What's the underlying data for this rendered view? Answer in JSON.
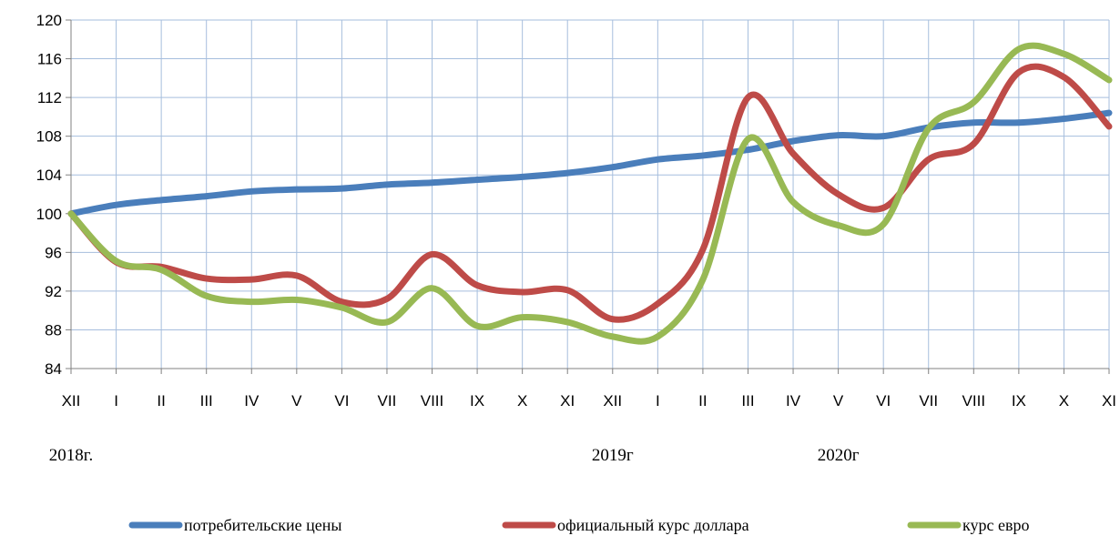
{
  "chart_data": {
    "type": "line",
    "categories": [
      "XII",
      "I",
      "II",
      "III",
      "IV",
      "V",
      "VI",
      "VII",
      "VIII",
      "IX",
      "X",
      "XI",
      "XII",
      "I",
      "II",
      "III",
      "IV",
      "V",
      "VI",
      "VII",
      "VIII",
      "IX",
      "X",
      "XI"
    ],
    "year_labels": [
      {
        "text": "2018г.",
        "category_index": 0
      },
      {
        "text": "2019г",
        "category_index": 12
      },
      {
        "text": "2020г",
        "category_index": 17
      }
    ],
    "ylim": [
      84,
      120
    ],
    "yticks": [
      84,
      88,
      92,
      96,
      100,
      104,
      108,
      112,
      116,
      120
    ],
    "grid": true,
    "legend_position": "bottom",
    "series": [
      {
        "name": "потребительские цены",
        "color": "#4a7ebb",
        "values": [
          100,
          100.9,
          101.4,
          101.8,
          102.3,
          102.5,
          102.6,
          103.0,
          103.2,
          103.5,
          103.8,
          104.2,
          104.8,
          105.6,
          106.0,
          106.6,
          107.5,
          108.1,
          108.0,
          108.9,
          109.4,
          109.4,
          109.8,
          110.4
        ]
      },
      {
        "name": "официальный курс доллара",
        "color": "#be4b48",
        "values": [
          100,
          95.0,
          94.5,
          93.3,
          93.2,
          93.6,
          90.9,
          91.2,
          95.8,
          92.6,
          91.9,
          92.1,
          89.1,
          90.7,
          96.3,
          112.0,
          106.2,
          102.0,
          100.6,
          105.6,
          107.2,
          114.6,
          114.1,
          109.0
        ]
      },
      {
        "name": "курс евро",
        "color": "#98b954",
        "values": [
          100,
          95.1,
          94.2,
          91.5,
          90.9,
          91.1,
          90.3,
          88.8,
          92.3,
          88.4,
          89.3,
          88.8,
          87.3,
          87.3,
          93.2,
          107.7,
          101.2,
          98.8,
          98.9,
          108.8,
          111.5,
          117.0,
          116.5,
          113.8
        ]
      }
    ]
  }
}
